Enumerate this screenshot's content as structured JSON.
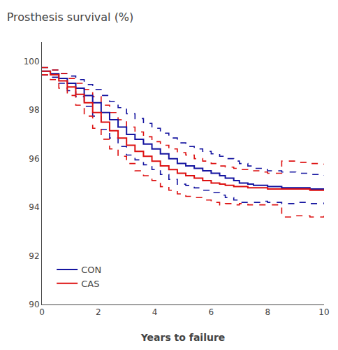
{
  "chart_data": {
    "type": "step",
    "title": "Prosthesis survival (%)",
    "x_label": "Years to failure",
    "x": [
      0,
      0.3,
      0.6,
      0.9,
      1.2,
      1.5,
      1.8,
      2.1,
      2.4,
      2.7,
      3.0,
      3.3,
      3.6,
      3.9,
      4.2,
      4.5,
      4.8,
      5.1,
      5.4,
      5.7,
      6.0,
      6.3,
      6.5,
      6.8,
      7.0,
      7.3,
      7.5,
      7.8,
      8.0,
      8.5,
      9.0,
      9.5,
      10.0
    ],
    "series": [
      {
        "name": "CON",
        "color": "#1515a0",
        "values": [
          99.6,
          99.5,
          99.3,
          99.1,
          98.9,
          98.6,
          98.3,
          97.9,
          97.6,
          97.3,
          97.0,
          96.8,
          96.6,
          96.4,
          96.2,
          96.0,
          95.8,
          95.7,
          95.6,
          95.5,
          95.4,
          95.3,
          95.2,
          95.1,
          95.0,
          94.95,
          94.9,
          94.9,
          94.85,
          94.8,
          94.8,
          94.75,
          94.75
        ],
        "upper": [
          99.75,
          99.65,
          99.5,
          99.4,
          99.25,
          99.05,
          98.85,
          98.6,
          98.35,
          98.1,
          97.85,
          97.65,
          97.45,
          97.25,
          97.05,
          96.85,
          96.65,
          96.5,
          96.4,
          96.3,
          96.2,
          96.1,
          96.0,
          95.9,
          95.8,
          95.7,
          95.6,
          95.55,
          95.5,
          95.45,
          95.4,
          95.35,
          95.3
        ],
        "lower": [
          99.45,
          99.35,
          99.1,
          98.8,
          98.55,
          98.15,
          97.75,
          97.2,
          96.85,
          96.5,
          96.15,
          95.95,
          95.75,
          95.55,
          95.35,
          95.15,
          94.95,
          94.9,
          94.8,
          94.7,
          94.6,
          94.5,
          94.4,
          94.3,
          94.2,
          94.2,
          94.2,
          94.25,
          94.2,
          94.15,
          94.2,
          94.15,
          94.2
        ]
      },
      {
        "name": "CAS",
        "color": "#dd1111",
        "values": [
          99.6,
          99.45,
          99.2,
          98.95,
          98.65,
          98.3,
          97.9,
          97.5,
          97.15,
          96.85,
          96.55,
          96.3,
          96.1,
          95.9,
          95.7,
          95.55,
          95.4,
          95.3,
          95.2,
          95.1,
          95.0,
          94.95,
          94.9,
          94.85,
          94.85,
          94.8,
          94.8,
          94.8,
          94.75,
          94.75,
          94.75,
          94.7,
          94.7
        ],
        "upper": [
          99.75,
          99.65,
          99.5,
          99.3,
          99.1,
          98.85,
          98.55,
          98.2,
          97.9,
          97.6,
          97.3,
          97.1,
          96.9,
          96.7,
          96.55,
          96.4,
          96.25,
          96.15,
          96.0,
          95.9,
          95.8,
          95.7,
          95.65,
          95.6,
          95.55,
          95.5,
          95.5,
          95.45,
          95.4,
          95.9,
          95.85,
          95.8,
          95.75
        ],
        "lower": [
          99.45,
          99.25,
          98.9,
          98.6,
          98.2,
          97.75,
          97.25,
          96.8,
          96.4,
          96.1,
          95.8,
          95.5,
          95.3,
          95.1,
          94.85,
          94.7,
          94.55,
          94.45,
          94.4,
          94.3,
          94.2,
          94.1,
          94.15,
          94.1,
          94.15,
          94.1,
          94.1,
          94.1,
          94.1,
          93.6,
          93.65,
          93.6,
          93.65
        ]
      }
    ],
    "xlim": [
      0,
      10
    ],
    "ylim": [
      90,
      100.8
    ],
    "xticks": [
      0,
      2,
      4,
      6,
      8,
      10
    ],
    "yticks": [
      90,
      92,
      94,
      96,
      98,
      100
    ],
    "grid": false,
    "legend": "lower left"
  }
}
